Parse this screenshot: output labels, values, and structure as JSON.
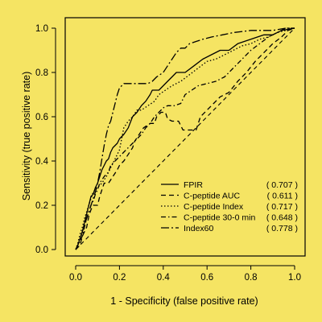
{
  "colors": {
    "background": "#f5e463",
    "ink": "#000000"
  },
  "chart_data": {
    "type": "line",
    "title": "",
    "xlabel": "1  - Specificity (false positive rate)",
    "ylabel": "Sensitivity (true positive rate)",
    "xlim": [
      0,
      1
    ],
    "ylim": [
      0,
      1
    ],
    "xticks": [
      0.0,
      0.2,
      0.4,
      0.6,
      0.8,
      1.0
    ],
    "yticks": [
      0.0,
      0.2,
      0.4,
      0.6,
      0.8,
      1.0
    ],
    "xtick_labels": [
      "0.0",
      "0.2",
      "0.4",
      "0.6",
      "0.8",
      "1.0"
    ],
    "ytick_labels": [
      "0.0",
      "0.2",
      "0.4",
      "0.6",
      "0.8",
      "1.0"
    ],
    "grid": false,
    "legend_position": "bottom-right",
    "reference_line": {
      "style": "dashed",
      "points": [
        [
          0,
          0
        ],
        [
          1,
          1
        ]
      ]
    },
    "series": [
      {
        "name": "FPIR",
        "auc": "( 0.707 )",
        "dash": "solid",
        "points": [
          [
            0,
            0
          ],
          [
            0.01,
            0.02
          ],
          [
            0.02,
            0.05
          ],
          [
            0.03,
            0.08
          ],
          [
            0.04,
            0.12
          ],
          [
            0.05,
            0.16
          ],
          [
            0.06,
            0.2
          ],
          [
            0.07,
            0.24
          ],
          [
            0.08,
            0.25
          ],
          [
            0.09,
            0.28
          ],
          [
            0.1,
            0.3
          ],
          [
            0.11,
            0.33
          ],
          [
            0.12,
            0.36
          ],
          [
            0.13,
            0.38
          ],
          [
            0.14,
            0.4
          ],
          [
            0.15,
            0.41
          ],
          [
            0.16,
            0.44
          ],
          [
            0.17,
            0.46
          ],
          [
            0.19,
            0.48
          ],
          [
            0.2,
            0.5
          ],
          [
            0.22,
            0.52
          ],
          [
            0.24,
            0.55
          ],
          [
            0.26,
            0.6
          ],
          [
            0.28,
            0.62
          ],
          [
            0.3,
            0.65
          ],
          [
            0.32,
            0.67
          ],
          [
            0.34,
            0.7
          ],
          [
            0.35,
            0.72
          ],
          [
            0.38,
            0.72
          ],
          [
            0.4,
            0.74
          ],
          [
            0.42,
            0.76
          ],
          [
            0.44,
            0.78
          ],
          [
            0.46,
            0.8
          ],
          [
            0.5,
            0.8
          ],
          [
            0.54,
            0.83
          ],
          [
            0.58,
            0.86
          ],
          [
            0.62,
            0.88
          ],
          [
            0.66,
            0.9
          ],
          [
            0.7,
            0.9
          ],
          [
            0.74,
            0.93
          ],
          [
            0.8,
            0.95
          ],
          [
            0.86,
            0.97
          ],
          [
            0.9,
            0.97
          ],
          [
            0.94,
            0.99
          ],
          [
            1.0,
            1.0
          ]
        ]
      },
      {
        "name": "C-peptide AUC",
        "auc": "( 0.611 )",
        "dash": "dashed",
        "points": [
          [
            0,
            0
          ],
          [
            0.02,
            0.02
          ],
          [
            0.03,
            0.06
          ],
          [
            0.05,
            0.1
          ],
          [
            0.06,
            0.15
          ],
          [
            0.07,
            0.18
          ],
          [
            0.08,
            0.2
          ],
          [
            0.1,
            0.2
          ],
          [
            0.11,
            0.24
          ],
          [
            0.12,
            0.27
          ],
          [
            0.13,
            0.3
          ],
          [
            0.15,
            0.3
          ],
          [
            0.17,
            0.33
          ],
          [
            0.19,
            0.36
          ],
          [
            0.2,
            0.38
          ],
          [
            0.22,
            0.4
          ],
          [
            0.24,
            0.43
          ],
          [
            0.26,
            0.46
          ],
          [
            0.27,
            0.49
          ],
          [
            0.29,
            0.52
          ],
          [
            0.31,
            0.55
          ],
          [
            0.34,
            0.57
          ],
          [
            0.36,
            0.57
          ],
          [
            0.37,
            0.6
          ],
          [
            0.39,
            0.62
          ],
          [
            0.41,
            0.62
          ],
          [
            0.42,
            0.59
          ],
          [
            0.44,
            0.58
          ],
          [
            0.47,
            0.58
          ],
          [
            0.49,
            0.54
          ],
          [
            0.53,
            0.54
          ],
          [
            0.55,
            0.54
          ],
          [
            0.57,
            0.6
          ],
          [
            0.6,
            0.63
          ],
          [
            0.63,
            0.66
          ],
          [
            0.66,
            0.69
          ],
          [
            0.7,
            0.71
          ],
          [
            0.74,
            0.76
          ],
          [
            0.78,
            0.8
          ],
          [
            0.82,
            0.85
          ],
          [
            0.86,
            0.89
          ],
          [
            0.9,
            0.93
          ],
          [
            0.94,
            0.96
          ],
          [
            0.97,
            0.99
          ],
          [
            1.0,
            1.0
          ]
        ]
      },
      {
        "name": "C-peptide Index",
        "auc": "( 0.717 )",
        "dash": "dotted",
        "points": [
          [
            0,
            0
          ],
          [
            0.01,
            0.03
          ],
          [
            0.02,
            0.07
          ],
          [
            0.03,
            0.1
          ],
          [
            0.04,
            0.14
          ],
          [
            0.05,
            0.17
          ],
          [
            0.06,
            0.2
          ],
          [
            0.07,
            0.23
          ],
          [
            0.08,
            0.26
          ],
          [
            0.1,
            0.28
          ],
          [
            0.12,
            0.3
          ],
          [
            0.14,
            0.33
          ],
          [
            0.16,
            0.37
          ],
          [
            0.18,
            0.41
          ],
          [
            0.2,
            0.45
          ],
          [
            0.21,
            0.5
          ],
          [
            0.22,
            0.55
          ],
          [
            0.24,
            0.58
          ],
          [
            0.26,
            0.6
          ],
          [
            0.28,
            0.63
          ],
          [
            0.3,
            0.63
          ],
          [
            0.33,
            0.65
          ],
          [
            0.36,
            0.67
          ],
          [
            0.38,
            0.7
          ],
          [
            0.41,
            0.72
          ],
          [
            0.44,
            0.74
          ],
          [
            0.48,
            0.76
          ],
          [
            0.52,
            0.79
          ],
          [
            0.56,
            0.82
          ],
          [
            0.6,
            0.85
          ],
          [
            0.64,
            0.86
          ],
          [
            0.68,
            0.88
          ],
          [
            0.72,
            0.9
          ],
          [
            0.76,
            0.92
          ],
          [
            0.8,
            0.93
          ],
          [
            0.84,
            0.95
          ],
          [
            0.88,
            0.96
          ],
          [
            0.92,
            0.98
          ],
          [
            0.96,
            0.99
          ],
          [
            1.0,
            1.0
          ]
        ]
      },
      {
        "name": "C-peptide 30-0 min",
        "auc": "( 0.648 )",
        "dash": "dash-dot",
        "points": [
          [
            0,
            0
          ],
          [
            0.01,
            0.02
          ],
          [
            0.02,
            0.04
          ],
          [
            0.03,
            0.06
          ],
          [
            0.04,
            0.1
          ],
          [
            0.05,
            0.14
          ],
          [
            0.06,
            0.17
          ],
          [
            0.07,
            0.2
          ],
          [
            0.08,
            0.22
          ],
          [
            0.09,
            0.25
          ],
          [
            0.1,
            0.27
          ],
          [
            0.11,
            0.3
          ],
          [
            0.13,
            0.33
          ],
          [
            0.15,
            0.35
          ],
          [
            0.16,
            0.38
          ],
          [
            0.18,
            0.4
          ],
          [
            0.2,
            0.42
          ],
          [
            0.22,
            0.44
          ],
          [
            0.24,
            0.46
          ],
          [
            0.26,
            0.48
          ],
          [
            0.28,
            0.5
          ],
          [
            0.3,
            0.52
          ],
          [
            0.32,
            0.55
          ],
          [
            0.34,
            0.57
          ],
          [
            0.36,
            0.6
          ],
          [
            0.38,
            0.62
          ],
          [
            0.4,
            0.64
          ],
          [
            0.42,
            0.65
          ],
          [
            0.45,
            0.65
          ],
          [
            0.48,
            0.66
          ],
          [
            0.5,
            0.7
          ],
          [
            0.53,
            0.72
          ],
          [
            0.56,
            0.74
          ],
          [
            0.6,
            0.75
          ],
          [
            0.64,
            0.76
          ],
          [
            0.68,
            0.78
          ],
          [
            0.72,
            0.82
          ],
          [
            0.76,
            0.86
          ],
          [
            0.8,
            0.9
          ],
          [
            0.84,
            0.93
          ],
          [
            0.88,
            0.96
          ],
          [
            0.92,
            0.98
          ],
          [
            0.96,
            1.0
          ],
          [
            1.0,
            1.0
          ]
        ]
      },
      {
        "name": "Index60",
        "auc": "( 0.778 )",
        "dash": "long-dash-dot",
        "points": [
          [
            0,
            0
          ],
          [
            0.01,
            0.02
          ],
          [
            0.02,
            0.05
          ],
          [
            0.03,
            0.08
          ],
          [
            0.04,
            0.11
          ],
          [
            0.05,
            0.14
          ],
          [
            0.06,
            0.17
          ],
          [
            0.07,
            0.2
          ],
          [
            0.08,
            0.23
          ],
          [
            0.09,
            0.26
          ],
          [
            0.1,
            0.3
          ],
          [
            0.11,
            0.35
          ],
          [
            0.12,
            0.41
          ],
          [
            0.13,
            0.47
          ],
          [
            0.14,
            0.52
          ],
          [
            0.15,
            0.56
          ],
          [
            0.16,
            0.58
          ],
          [
            0.17,
            0.62
          ],
          [
            0.18,
            0.66
          ],
          [
            0.19,
            0.7
          ],
          [
            0.2,
            0.73
          ],
          [
            0.22,
            0.75
          ],
          [
            0.26,
            0.75
          ],
          [
            0.3,
            0.75
          ],
          [
            0.33,
            0.75
          ],
          [
            0.35,
            0.76
          ],
          [
            0.37,
            0.78
          ],
          [
            0.4,
            0.8
          ],
          [
            0.42,
            0.83
          ],
          [
            0.44,
            0.86
          ],
          [
            0.46,
            0.89
          ],
          [
            0.48,
            0.91
          ],
          [
            0.5,
            0.91
          ],
          [
            0.52,
            0.93
          ],
          [
            0.55,
            0.94
          ],
          [
            0.58,
            0.95
          ],
          [
            0.62,
            0.96
          ],
          [
            0.67,
            0.97
          ],
          [
            0.72,
            0.98
          ],
          [
            0.8,
            0.99
          ],
          [
            0.9,
            0.99
          ],
          [
            0.96,
            1.0
          ],
          [
            1.0,
            1.0
          ]
        ]
      }
    ]
  }
}
